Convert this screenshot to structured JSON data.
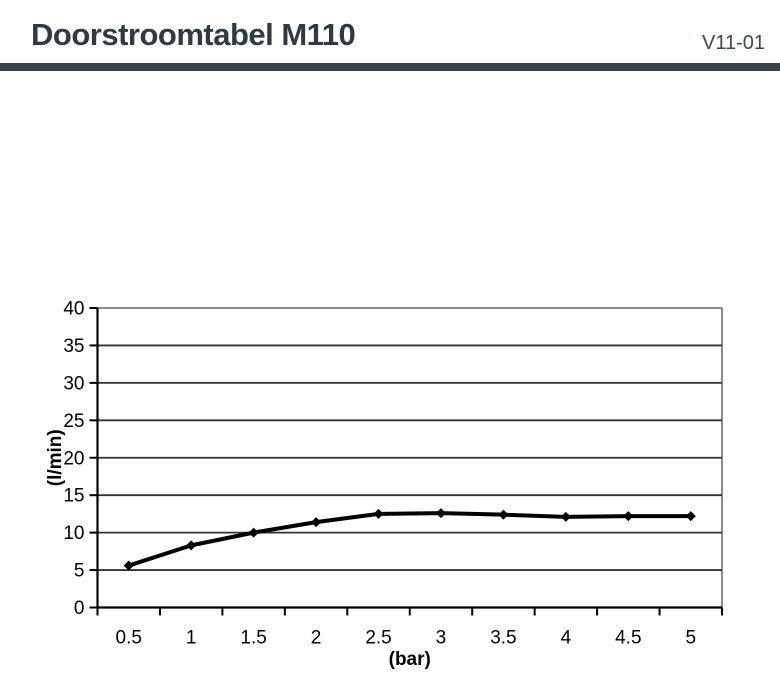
{
  "header": {
    "title": "Doorstroomtabel M110",
    "version": "V11-01"
  },
  "theme": {
    "background": "#ffffff",
    "title_color": "#2e3a44",
    "version_color": "#3e4a54",
    "divider_color": "#37424c"
  },
  "chart_data": {
    "type": "line",
    "title": "",
    "categories": [
      "0.5",
      "1",
      "1.5",
      "2",
      "2.5",
      "3",
      "3.5",
      "4",
      "4.5",
      "5"
    ],
    "series": [
      {
        "name": "",
        "values": [
          5.6,
          8.3,
          10.0,
          11.4,
          12.5,
          12.6,
          12.4,
          12.1,
          12.2,
          12.2
        ]
      }
    ],
    "xlabel": "(bar)",
    "ylabel": "(l/min)",
    "ylim": [
      0,
      40
    ],
    "ytick_step": 5,
    "grid": true,
    "legend": false,
    "marker": "diamond",
    "style": {
      "line_color": "#000000",
      "marker_color": "#000000",
      "gridline_color": "#333333",
      "plot_border_color": "#8c8c8c",
      "axis_color": "#000000",
      "tick_label_size": 19,
      "axis_title_size": 19
    }
  }
}
